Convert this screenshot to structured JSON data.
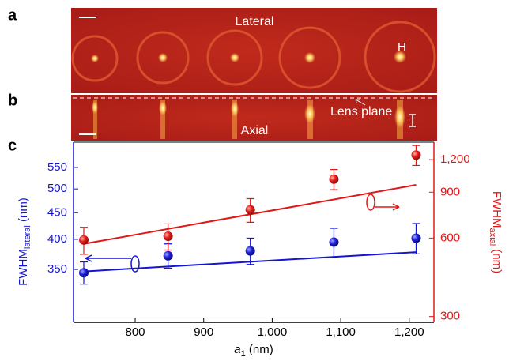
{
  "panels": {
    "a": {
      "letter": "a",
      "text": "Lateral"
    },
    "b": {
      "letter": "b",
      "text": "Axial",
      "note": "Lens plane"
    },
    "c": {
      "letter": "c"
    }
  },
  "chart_data": {
    "type": "scatter",
    "log_y": true,
    "xlabel": {
      "main": "a",
      "sub": "1",
      "unit": "(nm)"
    },
    "ylabel": {
      "main": "FWHM",
      "sub": "lateral",
      "unit": "(nm)"
    },
    "y2label": {
      "main": "FWHM",
      "sub": "axial",
      "unit": "(nm)"
    },
    "xlim": [
      710,
      1236
    ],
    "ylim": [
      277,
      615
    ],
    "y2lim": [
      285,
      1400
    ],
    "xticks": [
      800,
      900,
      {
        "value": 1000,
        "label": "1,000"
      },
      {
        "value": 1100,
        "label": "1,100"
      },
      {
        "value": 1200,
        "label": "1,200"
      }
    ],
    "yticks": [
      350,
      400,
      450,
      500,
      550
    ],
    "y2ticks": [
      300,
      600,
      900,
      {
        "value": 1200,
        "label": "1,200"
      }
    ],
    "x": [
      725,
      848,
      968,
      1090,
      1210
    ],
    "series": [
      {
        "color": "#1515d0",
        "values": [
          345,
          372,
          380,
          395,
          402
        ],
        "errors": [
          17,
          20,
          22,
          25,
          27
        ],
        "fit": {
          "x": [
            725,
            1210
          ],
          "values": [
            347,
            378
          ]
        }
      },
      {
        "color": "#e01818",
        "axis": "y2",
        "values": [
          590,
          610,
          770,
          1010,
          1250
        ],
        "errors": [
          70,
          70,
          80,
          90,
          110
        ],
        "fit": {
          "x": [
            725,
            1210
          ],
          "values": [
            570,
            960
          ]
        }
      }
    ]
  }
}
